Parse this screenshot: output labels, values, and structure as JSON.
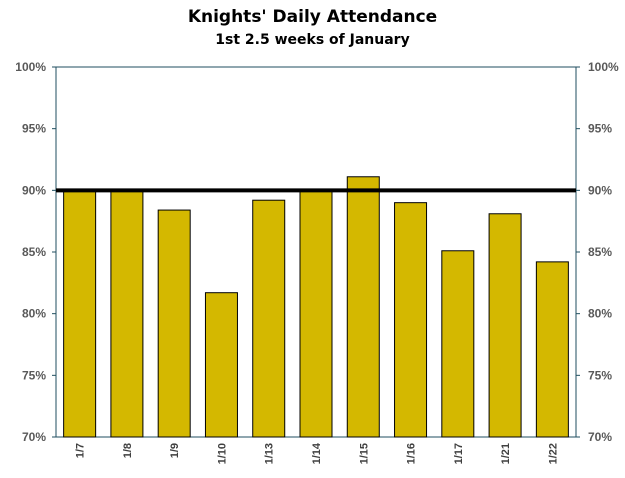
{
  "chart_data": {
    "type": "bar",
    "title": "Knights' Daily Attendance",
    "subtitle": "1st 2.5 weeks of January",
    "categories": [
      "1/7",
      "1/8",
      "1/9",
      "1/10",
      "1/13",
      "1/14",
      "1/15",
      "1/16",
      "1/17",
      "1/21",
      "1/22"
    ],
    "values": [
      90.0,
      90.0,
      88.4,
      81.7,
      89.2,
      90.0,
      91.1,
      89.0,
      85.1,
      88.1,
      84.2
    ],
    "ylim": [
      70,
      100
    ],
    "yticks": [
      "70%",
      "75%",
      "80%",
      "85%",
      "90%",
      "95%",
      "100%"
    ],
    "secondary_yticks": [
      "70%",
      "75%",
      "80%",
      "85%",
      "90%",
      "95%",
      "100%"
    ],
    "reference_line": 90,
    "grid": false,
    "xlabel": "",
    "ylabel": "",
    "colors": {
      "bar": "#D4B800",
      "bar_outline": "#000000",
      "reference": "#000000",
      "axis": "#1F4E5F"
    }
  }
}
